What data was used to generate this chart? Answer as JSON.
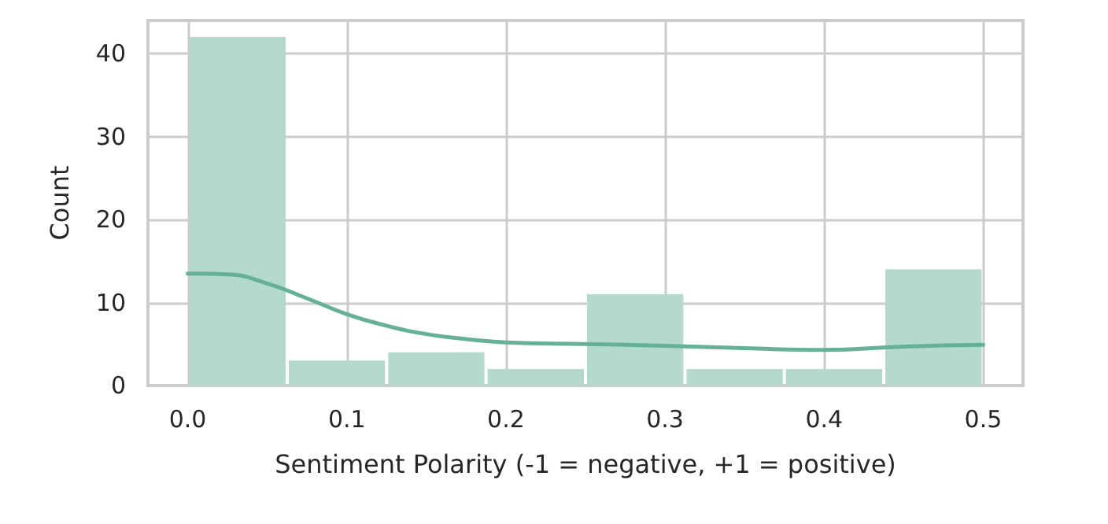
{
  "chart_data": {
    "type": "histogram",
    "xlabel": "Sentiment Polarity (-1 = negative, +1 = positive)",
    "ylabel": "Count",
    "bins": [
      0,
      0.0625,
      0.125,
      0.1875,
      0.25,
      0.3125,
      0.375,
      0.4375,
      0.5
    ],
    "series": [
      {
        "color": "#b3dacd",
        "values": [
          42,
          3,
          4,
          2,
          11,
          2,
          2,
          14
        ]
      },
      {
        "type": "line",
        "color": "#66b09a",
        "x": [
          0,
          0.025,
          0.05,
          0.075,
          0.1,
          0.125,
          0.15,
          0.175,
          0.2,
          0.25,
          0.3,
          0.35,
          0.4,
          0.45,
          0.5
        ],
        "values": [
          13.5,
          13.4,
          12.3,
          10.5,
          8.6,
          7.2,
          6.2,
          5.6,
          5.2,
          5.0,
          4.8,
          4.5,
          4.3,
          4.7,
          4.9
        ]
      }
    ],
    "xlim": [
      -0.025,
      0.525
    ],
    "xticks": [
      {
        "value": 0,
        "label": "0.0"
      },
      0.1,
      0.2,
      0.3,
      0.4,
      0.5
    ],
    "ylim": [
      0,
      44
    ],
    "yticks": [
      0,
      10,
      20,
      30,
      40
    ],
    "grid": true,
    "marker": "none",
    "line_style": "solid"
  }
}
